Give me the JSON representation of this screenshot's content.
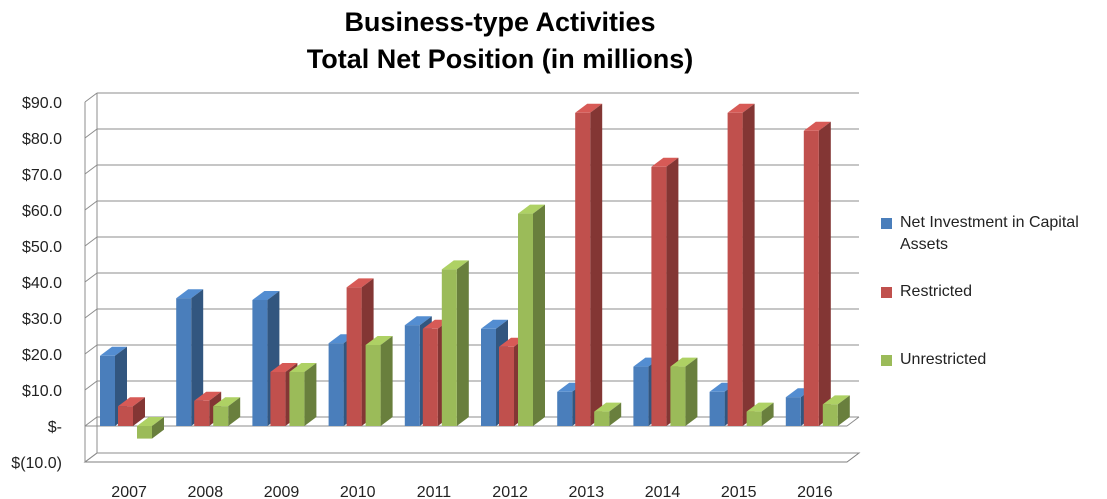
{
  "chart_data": {
    "type": "bar",
    "title_lines": [
      "Business-type Activities",
      "Total Net Position (in millions)"
    ],
    "categories": [
      "2007",
      "2008",
      "2009",
      "2010",
      "2011",
      "2012",
      "2013",
      "2014",
      "2015",
      "2016"
    ],
    "series": [
      {
        "name": "Net Investment in Capital Assets",
        "color": "#4a7ebb",
        "values": [
          19.5,
          35.5,
          35.0,
          23.0,
          28.0,
          27.0,
          9.5,
          16.5,
          9.5,
          8.0
        ]
      },
      {
        "name": "Restricted",
        "color": "#c0504d",
        "values": [
          5.5,
          7.0,
          15.0,
          38.5,
          27.0,
          22.0,
          87.0,
          72.0,
          87.0,
          82.0
        ]
      },
      {
        "name": "Unrestricted",
        "color": "#9bbb59",
        "values": [
          -3.5,
          5.5,
          15.0,
          22.5,
          43.5,
          59.0,
          4.0,
          16.5,
          4.0,
          6.0
        ]
      }
    ],
    "y_ticks": [
      -10,
      0,
      10,
      20,
      30,
      40,
      50,
      60,
      70,
      80,
      90
    ],
    "y_tick_labels": [
      "$(10.0)",
      "$-",
      "$10.0",
      "$20.0",
      "$30.0",
      "$40.0",
      "$50.0",
      "$60.0",
      "$70.0",
      "$80.0",
      "$90.0"
    ],
    "ylim": [
      -10,
      90
    ],
    "xlabel": "",
    "ylabel": "",
    "grid": true,
    "legend_position": "right"
  }
}
